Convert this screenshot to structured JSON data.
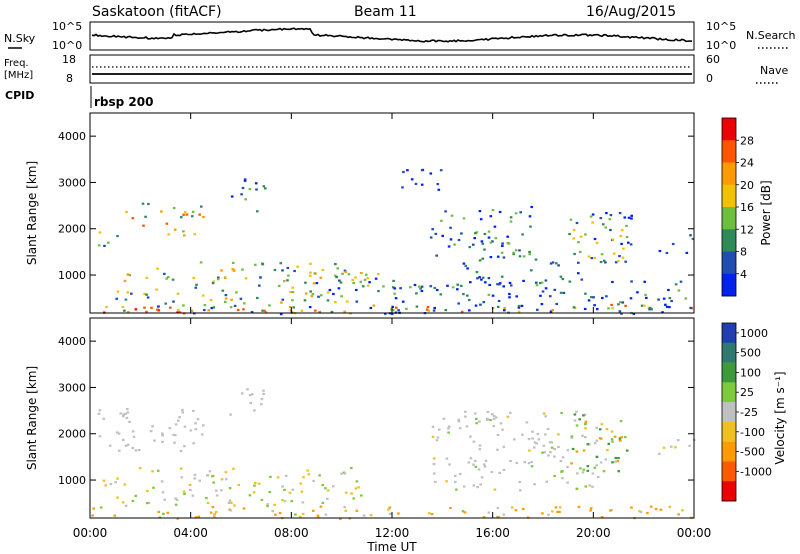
{
  "header": {
    "station": "Saskatoon (fitACF)",
    "beam": "Beam 11",
    "date": "16/Aug/2015"
  },
  "aux_panels": {
    "nsky_label": "N.Sky",
    "nsky_ticks": [
      "10^5",
      "10^0"
    ],
    "nsearch_label": "N.Search",
    "nsearch_ticks": [
      "10^5",
      "10^0"
    ],
    "freq_label": "Freq.",
    "freq_unit": "[MHz]",
    "freq_ticks": [
      "18",
      "8"
    ],
    "nave_label": "Nave",
    "nave_ticks": [
      "60",
      "0"
    ],
    "cpid_label": "CPID",
    "cpid_value": "rbsp 200"
  },
  "colors": {
    "power_scale": [
      "#0022ee",
      "#224db0",
      "#2e8b57",
      "#6fbf3f",
      "#f2c200",
      "#ff9a00",
      "#ff5500",
      "#ee0000"
    ],
    "velocity_scale": [
      "#1f3fb0",
      "#2e7a6e",
      "#3d9a3d",
      "#7dca3a",
      "#c0c0c0",
      "#f0c020",
      "#ff9a00",
      "#ff5a00",
      "#ee0000"
    ]
  },
  "chart_data": [
    {
      "type": "heatmap",
      "name": "power",
      "ylabel": "Slant Range [km]",
      "colorbar_label": "Power [dB]",
      "colorbar_ticks": [
        "28",
        "24",
        "20",
        "16",
        "12",
        "8",
        "4"
      ],
      "ylim": [
        180,
        4500
      ],
      "yticks": [
        "1000",
        "2000",
        "3000",
        "4000"
      ],
      "xlim": [
        0,
        24
      ],
      "xticks": [
        "00:00",
        "04:00",
        "08:00",
        "12:00",
        "16:00",
        "20:00",
        "00:00"
      ],
      "xlabel": "Time UT",
      "regions": [
        {
          "t": [
            0.0,
            24.0
          ],
          "r": [
            180,
            380
          ],
          "level": 14,
          "spread": 14
        },
        {
          "t": [
            0.0,
            2.5
          ],
          "r": [
            180,
            320
          ],
          "level": 28,
          "spread": 3
        },
        {
          "t": [
            2.5,
            10.5
          ],
          "r": [
            180,
            300
          ],
          "level": 24,
          "spread": 6
        },
        {
          "t": [
            1.0,
            11.0
          ],
          "r": [
            400,
            1300
          ],
          "level": 14,
          "spread": 10
        },
        {
          "t": [
            8.5,
            11.5
          ],
          "r": [
            600,
            1100
          ],
          "level": 10,
          "spread": 10
        },
        {
          "t": [
            0.3,
            1.4
          ],
          "r": [
            1650,
            2000
          ],
          "level": 10,
          "spread": 10
        },
        {
          "t": [
            1.4,
            4.5
          ],
          "r": [
            1800,
            2600
          ],
          "level": 18,
          "spread": 10
        },
        {
          "t": [
            5.5,
            7.0
          ],
          "r": [
            2400,
            3100
          ],
          "level": 8,
          "spread": 8
        },
        {
          "t": [
            12.3,
            14.0
          ],
          "r": [
            2800,
            3300
          ],
          "level": 4,
          "spread": 3
        },
        {
          "t": [
            13.5,
            17.5
          ],
          "r": [
            1400,
            2500
          ],
          "level": 8,
          "spread": 8
        },
        {
          "t": [
            14.5,
            20.5
          ],
          "r": [
            800,
            1400
          ],
          "level": 6,
          "spread": 6
        },
        {
          "t": [
            19.0,
            21.5
          ],
          "r": [
            1200,
            2500
          ],
          "level": 10,
          "spread": 10
        },
        {
          "t": [
            22.5,
            24.0
          ],
          "r": [
            1500,
            1900
          ],
          "level": 6,
          "spread": 6
        },
        {
          "t": [
            11.0,
            24.0
          ],
          "r": [
            180,
            900
          ],
          "level": 6,
          "spread": 8
        }
      ]
    },
    {
      "type": "heatmap",
      "name": "velocity",
      "ylabel": "Slant Range [km]",
      "colorbar_label": "Velocity [m s⁻¹]",
      "colorbar_ticks": [
        "1000",
        "500",
        "100",
        "25",
        "-25",
        "-100",
        "-500",
        "-1000"
      ],
      "ylim": [
        180,
        4500
      ],
      "yticks": [
        "1000",
        "2000",
        "3000",
        "4000"
      ],
      "xlim": [
        0,
        24
      ],
      "xticks": [
        "00:00",
        "04:00",
        "08:00",
        "12:00",
        "16:00",
        "20:00",
        "00:00"
      ],
      "xlabel": "Time UT",
      "regions": [
        {
          "t": [
            0.0,
            24.0
          ],
          "r": [
            180,
            450
          ],
          "level": -150,
          "spread": 200
        },
        {
          "t": [
            0.5,
            11.0
          ],
          "r": [
            450,
            1300
          ],
          "level": 0,
          "spread": 60
        },
        {
          "t": [
            0.3,
            4.5
          ],
          "r": [
            1650,
            2600
          ],
          "level": 0,
          "spread": 20
        },
        {
          "t": [
            5.5,
            7.0
          ],
          "r": [
            2400,
            3100
          ],
          "level": 0,
          "spread": 20
        },
        {
          "t": [
            13.5,
            20.5
          ],
          "r": [
            800,
            2500
          ],
          "level": 0,
          "spread": 30
        },
        {
          "t": [
            19.0,
            21.5
          ],
          "r": [
            1200,
            2500
          ],
          "level": 50,
          "spread": 300
        },
        {
          "t": [
            22.5,
            24.0
          ],
          "r": [
            1500,
            1900
          ],
          "level": 0,
          "spread": 40
        }
      ]
    }
  ]
}
